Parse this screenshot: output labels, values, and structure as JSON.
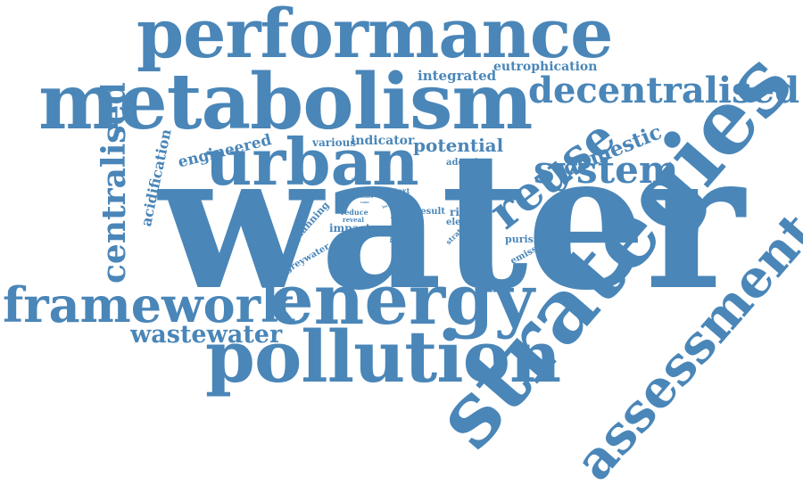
{
  "accent_color": "#4a86b8",
  "words": [
    {
      "id": "water",
      "text": "water"
    },
    {
      "id": "strategies",
      "text": "strategies"
    },
    {
      "id": "metabolism",
      "text": "metabolism"
    },
    {
      "id": "performance",
      "text": "performance"
    },
    {
      "id": "energy",
      "text": "energy"
    },
    {
      "id": "framework",
      "text": "framework"
    },
    {
      "id": "pollution",
      "text": "pollution"
    },
    {
      "id": "urban",
      "text": "urban"
    },
    {
      "id": "assessment",
      "text": "assessment"
    },
    {
      "id": "reuse",
      "text": "reuse"
    },
    {
      "id": "decentralised",
      "text": "decentralised"
    },
    {
      "id": "system",
      "text": "system"
    },
    {
      "id": "centralised",
      "text": "centralised"
    },
    {
      "id": "wastewater",
      "text": "wastewater"
    },
    {
      "id": "domestic",
      "text": "domestic"
    },
    {
      "id": "potential",
      "text": "potential"
    },
    {
      "id": "integrated",
      "text": "integrated"
    },
    {
      "id": "eutrophication",
      "text": "eutrophication"
    },
    {
      "id": "engineered",
      "text": "engineered"
    },
    {
      "id": "acidification",
      "text": "acidification"
    },
    {
      "id": "various",
      "text": "various"
    },
    {
      "id": "indicator",
      "text": "indicator"
    },
    {
      "id": "adoption",
      "text": "adoption"
    },
    {
      "id": "planning",
      "text": "planning"
    },
    {
      "id": "impact",
      "text": "impact"
    },
    {
      "id": "greywater",
      "text": "greywater"
    },
    {
      "id": "rincon",
      "text": "rincon"
    },
    {
      "id": "element",
      "text": "element"
    },
    {
      "id": "purisima",
      "text": "purisima"
    },
    {
      "id": "emission",
      "text": "emission"
    },
    {
      "id": "context",
      "text": "context"
    },
    {
      "id": "result",
      "text": "result"
    },
    {
      "id": "reduce",
      "text": "reduce"
    },
    {
      "id": "reveal",
      "text": "reveal"
    },
    {
      "id": "material",
      "text": "material"
    },
    {
      "id": "study",
      "text": "study"
    },
    {
      "id": "strategy",
      "text": "strategy"
    },
    {
      "id": "horizon",
      "text": "horizon"
    },
    {
      "id": "cities",
      "text": "cities"
    },
    {
      "id": "best",
      "text": "best"
    },
    {
      "id": "case",
      "text": "case"
    },
    {
      "id": "local",
      "text": "local"
    },
    {
      "id": "use",
      "text": "use"
    }
  ]
}
